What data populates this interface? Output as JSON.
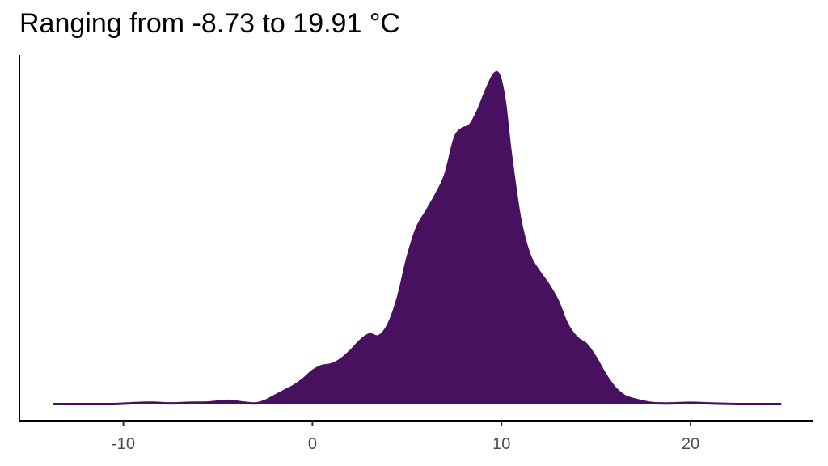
{
  "chart_data": {
    "type": "area",
    "title": "Ranging from -8.73 to 19.91 °C",
    "xlabel": "",
    "ylabel": "",
    "xlim": [
      -15.5,
      26.5
    ],
    "ylim": [
      0,
      1.0
    ],
    "x_ticks": [
      -10,
      0,
      10,
      20
    ],
    "x_tick_labels": [
      "-10",
      "0",
      "10",
      "20"
    ],
    "grid": false,
    "legend": "none",
    "fill_color": "#481160",
    "series": [
      {
        "x": [
          -13.7,
          -12,
          -10.5,
          -9,
          -8.3,
          -7.5,
          -6.5,
          -5.5,
          -4.5,
          -3.7,
          -3,
          -2.5,
          -2,
          -1.5,
          -1,
          -0.5,
          0,
          0.5,
          1,
          1.5,
          2,
          2.5,
          3,
          3.5,
          4,
          4.5,
          5,
          5.5,
          6,
          6.5,
          7,
          7.5,
          7.9,
          8.3,
          8.7,
          9.2,
          9.6,
          9.9,
          10.2,
          10.5,
          11,
          11.5,
          12,
          12.5,
          13,
          13.5,
          14,
          14.5,
          15,
          15.5,
          16,
          16.5,
          17,
          17.5,
          18,
          19,
          20,
          21,
          22.5,
          24.8
        ],
        "y": [
          0,
          0,
          0,
          0.004,
          0.004,
          0.002,
          0.004,
          0.005,
          0.01,
          0.005,
          0.002,
          0.01,
          0.025,
          0.04,
          0.055,
          0.075,
          0.1,
          0.115,
          0.12,
          0.135,
          0.16,
          0.19,
          0.21,
          0.205,
          0.24,
          0.32,
          0.44,
          0.53,
          0.58,
          0.63,
          0.69,
          0.8,
          0.83,
          0.84,
          0.88,
          0.95,
          0.995,
          0.99,
          0.91,
          0.76,
          0.56,
          0.45,
          0.4,
          0.36,
          0.31,
          0.24,
          0.2,
          0.18,
          0.14,
          0.09,
          0.05,
          0.025,
          0.015,
          0.008,
          0.003,
          0.002,
          0.004,
          0.002,
          0,
          0
        ]
      }
    ]
  }
}
